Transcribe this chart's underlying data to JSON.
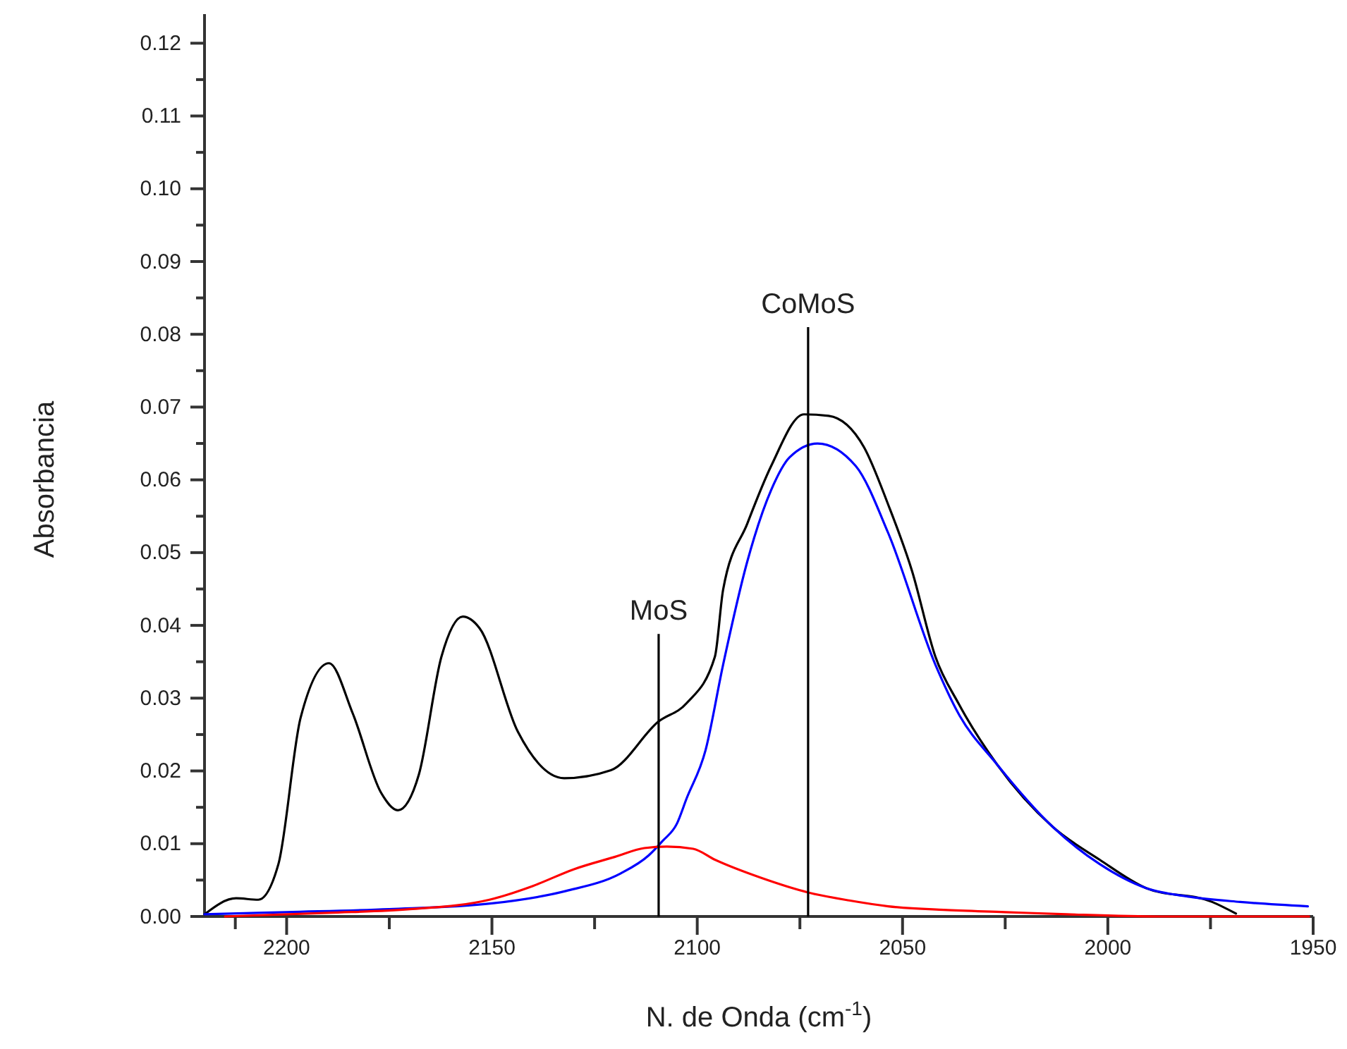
{
  "chart_data": {
    "type": "line",
    "xlabel": "N. de Onda (cm$^{-1}$)",
    "ylabel": "Absorbancia",
    "xlim": [
      2220,
      1950
    ],
    "ylim": [
      0,
      0.124
    ],
    "xticks": [
      {
        "value": 2212.5,
        "label": null
      },
      2200,
      {
        "value": 2175,
        "label": null
      },
      2150,
      {
        "value": 2125,
        "label": null
      },
      2100,
      {
        "value": 2075,
        "label": null
      },
      2050,
      {
        "value": 2025,
        "label": null
      },
      2000,
      {
        "value": 1975,
        "label": null
      },
      1950
    ],
    "yticks": [
      {
        "value": 0,
        "label": "0.00"
      },
      {
        "value": 0.005,
        "label": null
      },
      {
        "value": 0.01,
        "label": "0.01"
      },
      {
        "value": 0.015,
        "label": null
      },
      {
        "value": 0.02,
        "label": "0.02"
      },
      {
        "value": 0.025,
        "label": null
      },
      {
        "value": 0.03,
        "label": "0.03"
      },
      {
        "value": 0.035,
        "label": null
      },
      {
        "value": 0.04,
        "label": "0.04"
      },
      {
        "value": 0.045,
        "label": null
      },
      {
        "value": 0.05,
        "label": "0.05"
      },
      {
        "value": 0.055,
        "label": null
      },
      {
        "value": 0.06,
        "label": "0.06"
      },
      {
        "value": 0.065,
        "label": null
      },
      {
        "value": 0.07,
        "label": "0.07"
      },
      {
        "value": 0.075,
        "label": null
      },
      {
        "value": 0.08,
        "label": "0.08"
      },
      {
        "value": 0.085,
        "label": null
      },
      {
        "value": 0.09,
        "label": "0.09"
      },
      {
        "value": 0.095,
        "label": null
      },
      {
        "value": 0.1,
        "label": "0.10"
      },
      {
        "value": 0.105,
        "label": null
      },
      {
        "value": 0.11,
        "label": "0.11"
      },
      {
        "value": 0.115,
        "label": null
      },
      {
        "value": 0.12,
        "label": "0.12"
      }
    ],
    "grid": false,
    "marker": "none",
    "line_style": "solid",
    "series": [
      {
        "color": "#000000",
        "x": [
          2220,
          2212.3,
          2206.9,
          2202,
          2196.6,
          2189.7,
          2183.9,
          2177,
          2172.9,
          2167.8,
          2162.3,
          2157.1,
          2153,
          2143.7,
          2132.4,
          2121,
          2109.4,
          2102.6,
          2095.7,
          2093.7,
          2087.8,
          2082,
          2074,
          2068,
          2059.4,
          2053.5,
          2047.7,
          2042,
          2036.4,
          2027,
          2013.4,
          2002,
          1990.7,
          1974.6,
          1968.8
        ],
        "values": [
          0.0003,
          0.0025,
          0.0023,
          0.0072,
          0.0273,
          0.0348,
          0.0279,
          0.017,
          0.0146,
          0.0195,
          0.0357,
          0.0412,
          0.0396,
          0.0254,
          0.019,
          0.0201,
          0.0268,
          0.0293,
          0.0357,
          0.0449,
          0.054,
          0.0619,
          0.069,
          0.0688,
          0.0645,
          0.0566,
          0.0475,
          0.0357,
          0.0293,
          0.0209,
          0.0123,
          0.0078,
          0.0039,
          0.002,
          0.0004
        ]
      },
      {
        "color": "#0000ff",
        "x": [
          2220,
          2200,
          2175,
          2150,
          2132,
          2118.7,
          2111.8,
          2108.4,
          2105,
          2102.6,
          2098,
          2093.7,
          2087.8,
          2082,
          2077.5,
          2070.7,
          2061.4,
          2053.5,
          2042,
          2036.4,
          2027,
          2013.4,
          2002,
          1990.7,
          1980,
          1967.8,
          1951.3
        ],
        "values": [
          0.0003,
          0.0006,
          0.001,
          0.0018,
          0.0035,
          0.0059,
          0.0084,
          0.0104,
          0.0127,
          0.0162,
          0.0228,
          0.0346,
          0.0488,
          0.0586,
          0.0631,
          0.065,
          0.0619,
          0.0527,
          0.0346,
          0.0279,
          0.0209,
          0.0123,
          0.0072,
          0.0039,
          0.0027,
          0.002,
          0.0014
        ]
      },
      {
        "color": "#ff0000",
        "x": [
          2215,
          2190,
          2170,
          2150.6,
          2140,
          2130,
          2120,
          2112.9,
          2107.4,
          2101,
          2095.7,
          2084.4,
          2073,
          2063,
          2053.5,
          2040,
          2025,
          2010,
          1987,
          1970,
          1951
        ],
        "values": [
          0,
          0.0005,
          0.001,
          0.0023,
          0.0042,
          0.0065,
          0.0082,
          0.0094,
          0.0096,
          0.0093,
          0.0078,
          0.0053,
          0.0033,
          0.0022,
          0.0014,
          0.0009,
          0.0006,
          0.0003,
          0,
          0,
          0
        ]
      }
    ],
    "ref_lines": [
      {
        "axis": "x",
        "value": 2109.4,
        "label": "MoS"
      },
      {
        "axis": "x",
        "value": 2073,
        "label": "CoMoS"
      }
    ]
  }
}
